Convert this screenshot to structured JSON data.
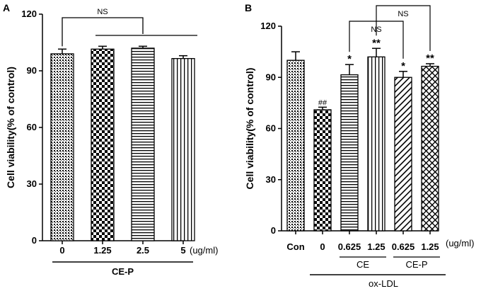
{
  "chart_data": [
    {
      "type": "bar",
      "panel": "A",
      "ylabel": "Cell viability(% of control)",
      "ylim": [
        0,
        120
      ],
      "yticks": [
        0,
        30,
        60,
        90,
        120
      ],
      "categories": [
        "0",
        "1.25",
        "2.5",
        "5"
      ],
      "values": [
        99,
        101.5,
        102,
        96.5
      ],
      "errors": [
        2.5,
        1.5,
        1,
        1.5
      ],
      "unit_label": "(ug/ml)",
      "group_label": "CE-P",
      "significance": [
        {
          "label": "NS",
          "from": "0",
          "to": "2.5"
        }
      ]
    },
    {
      "type": "bar",
      "panel": "B",
      "ylabel": "Cell viability(% of control)",
      "ylim": [
        0,
        120
      ],
      "yticks": [
        0,
        30,
        60,
        90,
        120
      ],
      "categories": [
        "Con",
        "0",
        "0.625",
        "1.25",
        "0.625",
        "1.25"
      ],
      "values": [
        100,
        71,
        91.5,
        102,
        90,
        96.5
      ],
      "errors": [
        5,
        1.5,
        6,
        5,
        3.5,
        1.5
      ],
      "annotations": [
        "",
        "##",
        "*",
        "**",
        "*",
        "**"
      ],
      "unit_label": "(ug/ml)",
      "subgroups": [
        {
          "label": "CE",
          "from": 2,
          "to": 3
        },
        {
          "label": "CE-P",
          "from": 4,
          "to": 5
        }
      ],
      "group_label": "ox-LDL",
      "significance": [
        {
          "label": "NS",
          "from": 2,
          "to": 4
        },
        {
          "label": "NS",
          "from": 3,
          "to": 5
        }
      ]
    }
  ]
}
